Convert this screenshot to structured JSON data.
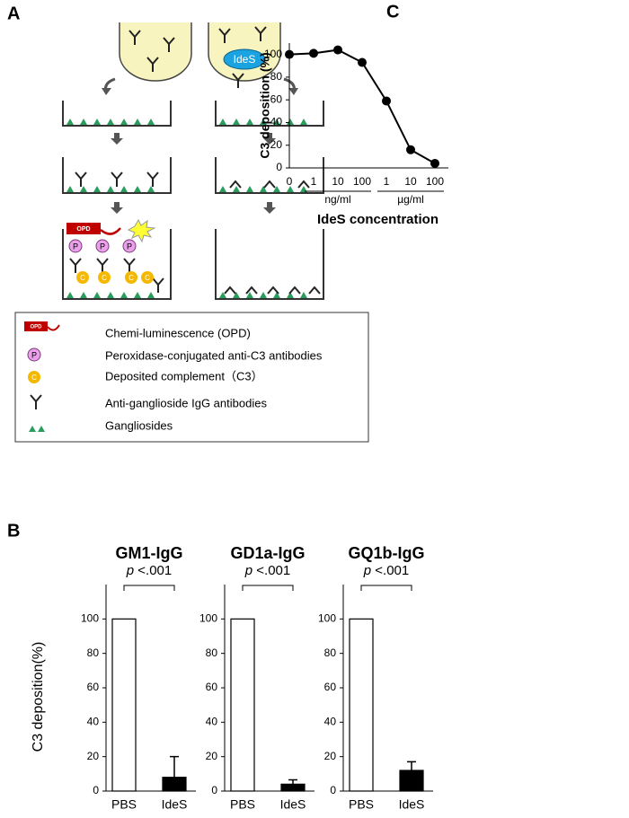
{
  "panel_labels": {
    "a": "A",
    "b": "B",
    "c": "C"
  },
  "diagram": {
    "enzyme": "IdeS",
    "reagent": "OPD",
    "peroxidase_mark": "P",
    "complement_mark": "C",
    "legend": [
      "Chemi-luminescence (OPD)",
      "Peroxidase-conjugated anti-C3 antibodies",
      "Deposited complement（C3）",
      "Anti-ganglioside IgG antibodies",
      "Gangliosides"
    ]
  },
  "chart_data": [
    {
      "type": "line",
      "ylabel": "C3 deposition (%)",
      "xlabel": "IdeS concentration",
      "categories": [
        "0",
        "1",
        "10",
        "100",
        "1",
        "10",
        "100"
      ],
      "category_units": [
        null,
        "ng/ml",
        "ng/ml",
        "ng/ml",
        "µg/ml",
        "µg/ml",
        "µg/ml"
      ],
      "values": [
        100,
        101,
        104,
        93,
        59,
        16,
        4
      ],
      "color": "#000000",
      "ylim": [
        0,
        110
      ],
      "yticks": [
        0,
        20,
        40,
        60,
        80,
        100
      ]
    },
    {
      "type": "bar",
      "title": "GM1-IgG",
      "ylabel": "C3 deposition(%)",
      "categories": [
        "PBS",
        "IdeS"
      ],
      "values": [
        100,
        8
      ],
      "errors": [
        null,
        12
      ],
      "colors": [
        "#ffffff",
        "#000000"
      ],
      "annotation": {
        "symbol": "p",
        "text": "<.001"
      },
      "ylim": [
        0,
        120
      ],
      "yticks": [
        0,
        20,
        40,
        60,
        80,
        100
      ]
    },
    {
      "type": "bar",
      "title": "GD1a-IgG",
      "categories": [
        "PBS",
        "IdeS"
      ],
      "values": [
        100,
        4
      ],
      "errors": [
        null,
        2.5
      ],
      "colors": [
        "#ffffff",
        "#000000"
      ],
      "annotation": {
        "symbol": "p",
        "text": "<.001"
      },
      "ylim": [
        0,
        120
      ],
      "yticks": [
        0,
        20,
        40,
        60,
        80,
        100
      ]
    },
    {
      "type": "bar",
      "title": "GQ1b-IgG",
      "categories": [
        "PBS",
        "IdeS"
      ],
      "values": [
        100,
        12
      ],
      "errors": [
        null,
        5
      ],
      "colors": [
        "#ffffff",
        "#000000"
      ],
      "annotation": {
        "symbol": "p",
        "text": "<.001"
      },
      "ylim": [
        0,
        120
      ],
      "yticks": [
        0,
        20,
        40,
        60,
        80,
        100
      ]
    }
  ]
}
